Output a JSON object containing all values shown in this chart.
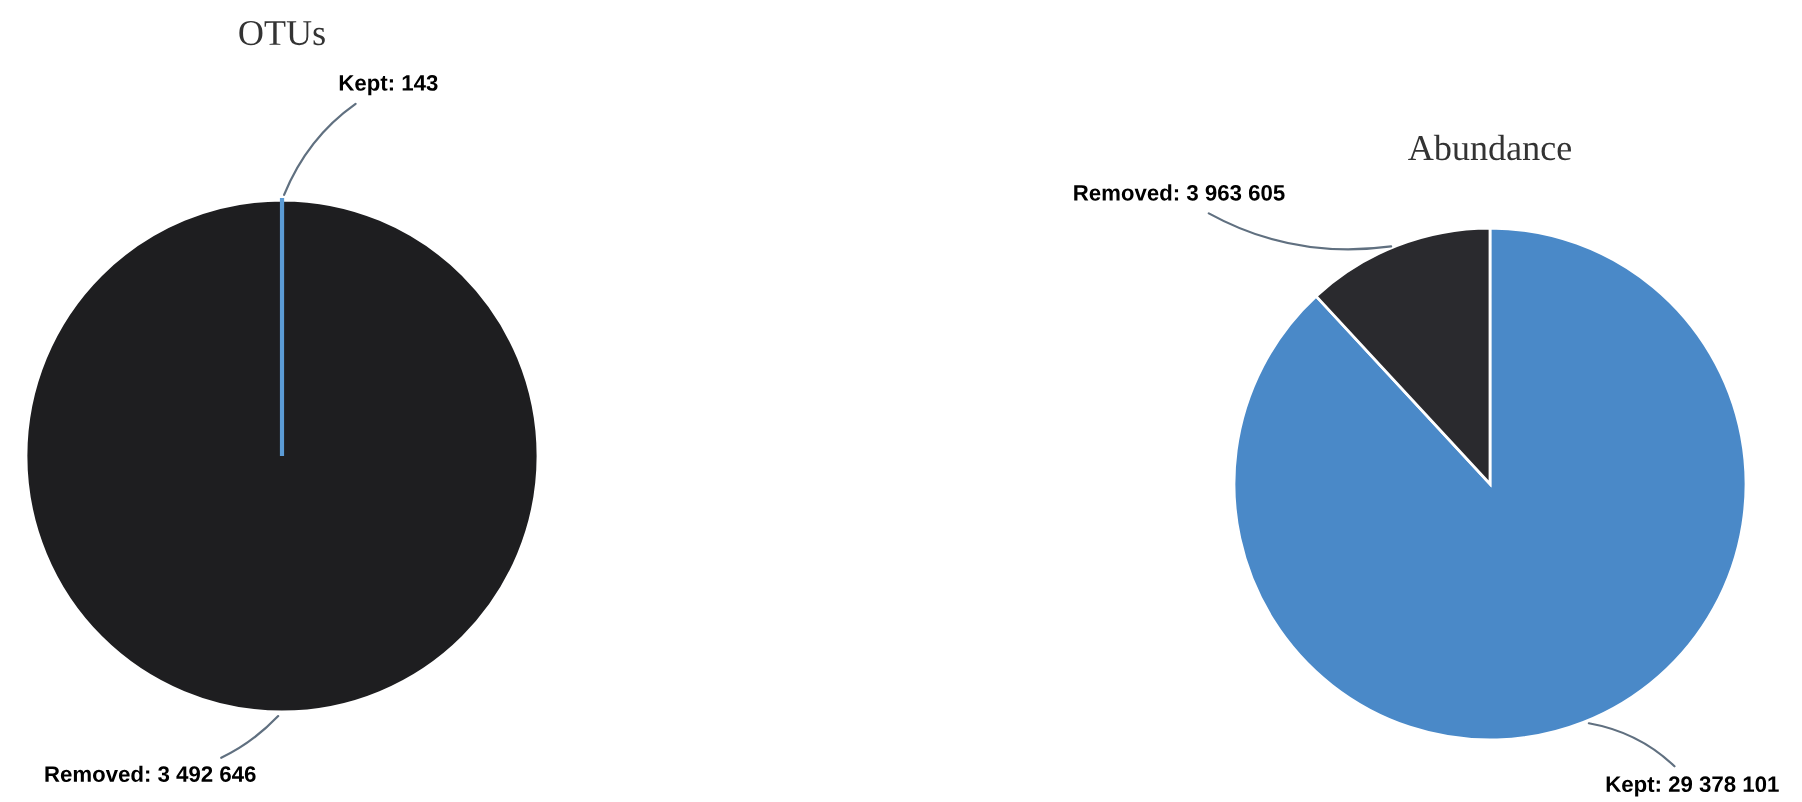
{
  "chart_data": [
    {
      "type": "pie",
      "title": "OTUs",
      "categories": [
        "Kept",
        "Removed"
      ],
      "values": [
        143,
        3492646
      ],
      "value_labels": [
        "143",
        "3 492 646"
      ],
      "colors": [
        "#5b9bd5",
        "#1e1e20"
      ]
    },
    {
      "type": "pie",
      "title": "Abundance",
      "categories": [
        "Kept",
        "Removed"
      ],
      "values": [
        29378101,
        3963605
      ],
      "value_labels": [
        "29 378 101",
        "3 963 605"
      ],
      "colors": [
        "#4a89c8",
        "#2a2a2e"
      ]
    }
  ]
}
